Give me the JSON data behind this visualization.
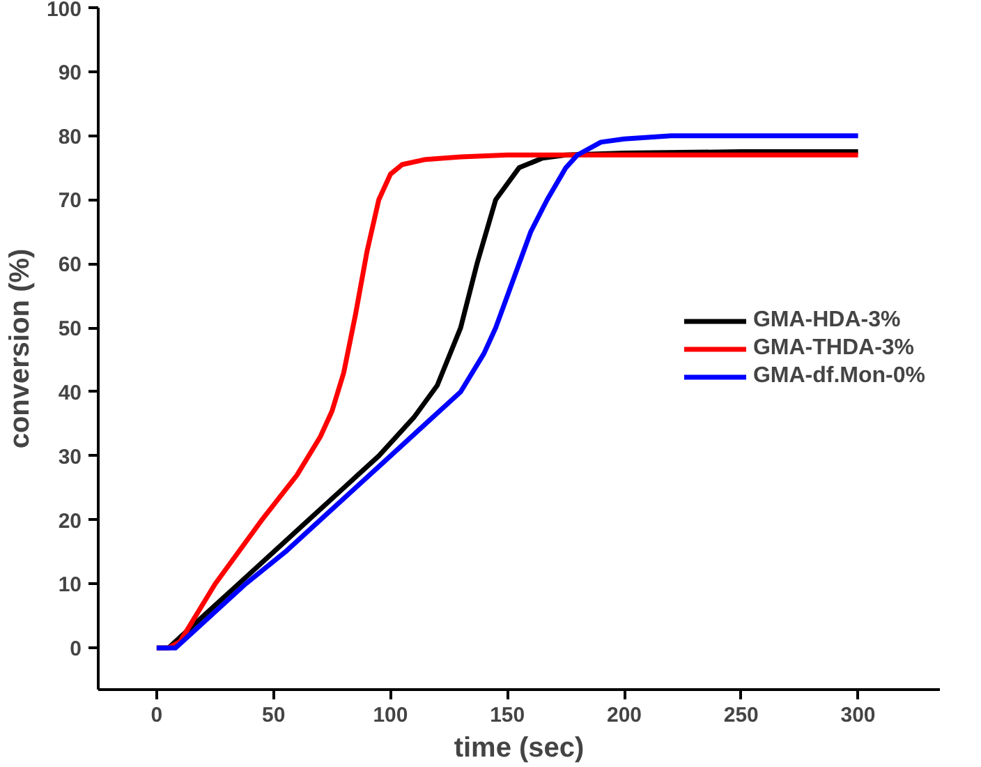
{
  "chart_data": {
    "type": "line",
    "xlabel": "time (sec)",
    "ylabel": "conversion (%)",
    "xlim": [
      -25,
      335
    ],
    "ylim": [
      -6.5,
      100
    ],
    "xticks": [
      0,
      50,
      100,
      150,
      200,
      250,
      300
    ],
    "yticks": [
      0,
      10,
      20,
      30,
      40,
      50,
      60,
      70,
      80,
      90,
      100
    ],
    "grid": false,
    "legend": "right",
    "marker": "none",
    "line_style": "solid",
    "series": [
      {
        "name": "GMA-HDA-3%",
        "color": "#000000",
        "x": [
          0,
          5,
          20,
          35,
          50,
          65,
          80,
          95,
          110,
          120,
          130,
          137,
          145,
          155,
          165,
          175,
          200,
          250,
          300
        ],
        "values": [
          0,
          0,
          5,
          10,
          15,
          20,
          25,
          30,
          36,
          41,
          50,
          60,
          70,
          75,
          76.5,
          77,
          77.3,
          77.5,
          77.5
        ]
      },
      {
        "name": "GMA-THDA-3%",
        "color": "#ff0000",
        "x": [
          0,
          5,
          10,
          25,
          45,
          60,
          70,
          75,
          80,
          85,
          90,
          95,
          100,
          105,
          115,
          130,
          150,
          200,
          250,
          300
        ],
        "values": [
          0,
          0,
          1,
          10,
          20,
          27,
          33,
          37,
          43,
          52,
          62,
          70,
          74,
          75.5,
          76.3,
          76.7,
          77,
          77,
          77,
          77
        ]
      },
      {
        "name": "GMA-df.Mon-0%",
        "color": "#0000ff",
        "x": [
          0,
          8,
          20,
          38,
          55,
          70,
          85,
          100,
          115,
          130,
          140,
          145,
          150,
          155,
          160,
          167,
          175,
          180,
          190,
          200,
          220,
          250,
          300
        ],
        "values": [
          0,
          0,
          4,
          10,
          15,
          20,
          25,
          30,
          35,
          40,
          46,
          50,
          55,
          60,
          65,
          70,
          75,
          77,
          79,
          79.5,
          80,
          80,
          80
        ]
      }
    ]
  }
}
